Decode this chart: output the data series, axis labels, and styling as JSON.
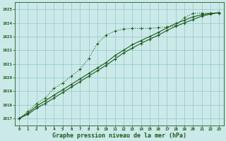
{
  "x": [
    0,
    1,
    2,
    3,
    4,
    5,
    6,
    7,
    8,
    9,
    10,
    11,
    12,
    13,
    14,
    15,
    16,
    17,
    18,
    19,
    20,
    21,
    22,
    23
  ],
  "line1": [
    1017.0,
    1017.5,
    1018.1,
    1018.5,
    1019.2,
    1019.6,
    1020.1,
    1020.6,
    1021.4,
    1022.5,
    1023.1,
    1023.4,
    1023.55,
    1023.6,
    1023.6,
    1023.6,
    1023.65,
    1023.7,
    1023.8,
    1024.4,
    1024.7,
    1024.72,
    1024.72,
    1024.72
  ],
  "line2": [
    1017.0,
    1017.4,
    1017.9,
    1018.3,
    1018.7,
    1019.1,
    1019.5,
    1019.9,
    1020.3,
    1020.7,
    1021.1,
    1021.6,
    1022.0,
    1022.4,
    1022.7,
    1023.0,
    1023.3,
    1023.65,
    1023.95,
    1024.2,
    1024.45,
    1024.6,
    1024.7,
    1024.75
  ],
  "line3": [
    1017.0,
    1017.3,
    1017.75,
    1018.1,
    1018.5,
    1018.9,
    1019.3,
    1019.7,
    1020.1,
    1020.5,
    1020.9,
    1021.35,
    1021.8,
    1022.15,
    1022.5,
    1022.8,
    1023.1,
    1023.45,
    1023.75,
    1024.0,
    1024.25,
    1024.5,
    1024.65,
    1024.75
  ],
  "ylim": [
    1016.5,
    1025.5
  ],
  "yticks": [
    1017,
    1018,
    1019,
    1020,
    1021,
    1022,
    1023,
    1024,
    1025
  ],
  "xlim": [
    -0.5,
    23.5
  ],
  "xticks": [
    0,
    1,
    2,
    3,
    4,
    5,
    6,
    7,
    8,
    9,
    10,
    11,
    12,
    13,
    14,
    15,
    16,
    17,
    18,
    19,
    20,
    21,
    22,
    23
  ],
  "xlabel": "Graphe pression niveau de la mer (hPa)",
  "bg_color": "#cce9e9",
  "grid_color": "#99cccc",
  "line_color": "#1a5c1a",
  "marker": "+",
  "marker_size": 3.5,
  "line_width": 0.8
}
